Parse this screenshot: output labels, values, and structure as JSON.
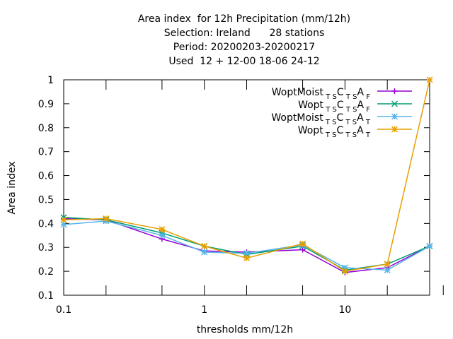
{
  "chart_data": {
    "type": "line",
    "title_lines": [
      "Area index  for 12h Precipitation (mm/12h)",
      "Selection: Ireland      28 stations",
      "Period: 20200203-20200217",
      "Used  12 + 12-00 18-06 24-12"
    ],
    "xlabel": "thresholds mm/12h",
    "ylabel": "Area index",
    "x_scale": "log",
    "xlim": [
      0.1,
      40
    ],
    "ylim": [
      0.1,
      1.0
    ],
    "x_ticks": [
      {
        "value": 0.1,
        "label": "0.1"
      },
      {
        "value": 1,
        "label": "1"
      },
      {
        "value": 10,
        "label": "10"
      }
    ],
    "x_minor_ticks": [
      0.2,
      0.5,
      2,
      5,
      20,
      50
    ],
    "y_ticks": [
      {
        "value": 0.1,
        "label": "0.1"
      },
      {
        "value": 0.2,
        "label": "0.2"
      },
      {
        "value": 0.3,
        "label": "0.3"
      },
      {
        "value": 0.4,
        "label": "0.4"
      },
      {
        "value": 0.5,
        "label": "0.5"
      },
      {
        "value": 0.6,
        "label": "0.6"
      },
      {
        "value": 0.7,
        "label": "0.7"
      },
      {
        "value": 0.8,
        "label": "0.8"
      },
      {
        "value": 0.9,
        "label": "0.9"
      },
      {
        "value": 1.0,
        "label": "1"
      }
    ],
    "grid": false,
    "legend_position": "top-right",
    "x": [
      0.1,
      0.2,
      0.5,
      1,
      2,
      5,
      10,
      20,
      40
    ],
    "series": [
      {
        "name": "WoptMoist",
        "sub1": "T S",
        "mid": "C",
        "sub2": "T S",
        "tail": "A",
        "sub3": "F",
        "color": "#9400d3",
        "marker": "plus",
        "values": [
          0.42,
          0.415,
          0.335,
          0.285,
          0.28,
          0.29,
          0.195,
          0.215,
          0.305
        ]
      },
      {
        "name": "Wopt",
        "sub1": "T S",
        "mid": "C",
        "sub2": "T S",
        "tail": "A",
        "sub3": "F",
        "color": "#009e73",
        "marker": "cross",
        "values": [
          0.425,
          0.415,
          0.36,
          0.305,
          0.27,
          0.305,
          0.205,
          0.23,
          0.305
        ]
      },
      {
        "name": "WoptMoist",
        "sub1": "T S",
        "mid": "C",
        "sub2": "T S",
        "tail": "A",
        "sub3": "T",
        "color": "#56b4e9",
        "marker": "star",
        "values": [
          0.395,
          0.41,
          0.35,
          0.28,
          0.275,
          0.31,
          0.215,
          0.205,
          0.305
        ]
      },
      {
        "name": "Wopt",
        "sub1": "T S",
        "mid": "C",
        "sub2": "T S",
        "tail": "A",
        "sub3": "T",
        "color": "#e69f00",
        "marker": "star",
        "values": [
          0.415,
          0.42,
          0.375,
          0.305,
          0.255,
          0.315,
          0.2,
          0.23,
          1.0
        ]
      }
    ]
  }
}
